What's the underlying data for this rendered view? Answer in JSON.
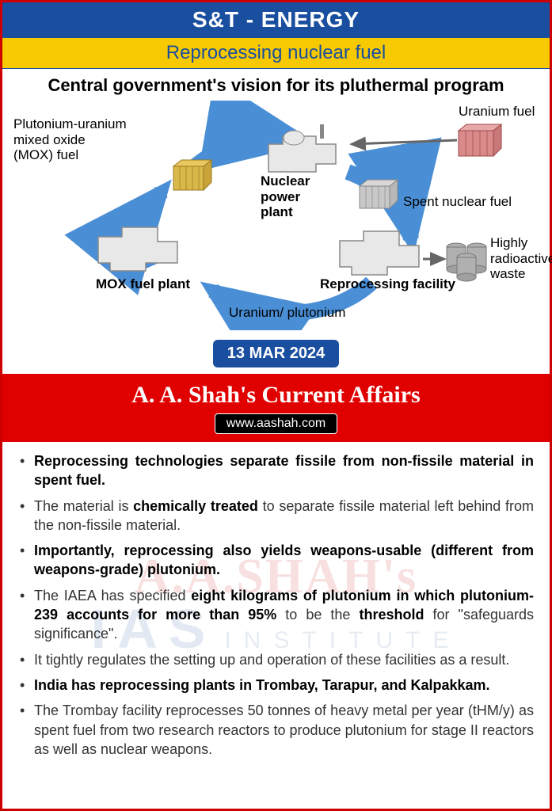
{
  "header": {
    "category": "S&T - ENERGY",
    "topic": "Reprocessing nuclear fuel"
  },
  "diagram": {
    "title": "Central government's vision for its pluthermal program",
    "labels": {
      "mox_fuel": "Plutonium-uranium\nmixed oxide\n(MOX) fuel",
      "uranium_fuel": "Uranium fuel",
      "npp": "Nuclear\npower\nplant",
      "spent": "Spent nuclear fuel",
      "mox_plant": "MOX fuel plant",
      "reproc": "Reprocessing facility",
      "up": "Uranium/ plutonium",
      "waste": "Highly\nradioactive\nwaste"
    },
    "colors": {
      "arrow": "#4a8fd6",
      "arrow_dark": "#2b6bb3",
      "facility_fill": "#e8e8e8",
      "facility_stroke": "#888",
      "mox_cube": "#d9b84a",
      "uranium_cube": "#d98a8a",
      "spent_cube": "#c8c8c8",
      "waste_drum": "#b0b0b0"
    }
  },
  "date": "13 MAR 2024",
  "brand": {
    "title": "A. A. Shah's Current Affairs",
    "site": "www.aashah.com"
  },
  "bullets": [
    {
      "html": "<b>Reprocessing technologies separate fissile from non-fissile material in spent fuel.</b>"
    },
    {
      "html": "The material is <b>chemically treated</b> to separate fissile material left behind from the non-fissile material."
    },
    {
      "html": "<b>Importantly, reprocessing also yields weapons-usable (different from weapons-grade) plutonium.</b>"
    },
    {
      "html": "The IAEA has specified <b>eight kilograms of plutonium in which plutonium-239 accounts for more than 95%</b> to be the <b>threshold</b> for \"safeguards significance\"."
    },
    {
      "html": "It tightly regulates the setting up and operation of these facilities as a result."
    },
    {
      "html": "<b>India has reprocessing plants in Trombay, Tarapur, and Kalpakkam.</b>"
    },
    {
      "html": "The Trombay facility reprocesses 50 tonnes of heavy metal per year (tHM/y) as spent fuel from two research reactors to produce plutonium for stage II reactors as well as nuclear weapons."
    }
  ],
  "watermark": {
    "line1": "A.A.SHAH's",
    "line2": "IAS",
    "inst": "INSTITUTE"
  }
}
